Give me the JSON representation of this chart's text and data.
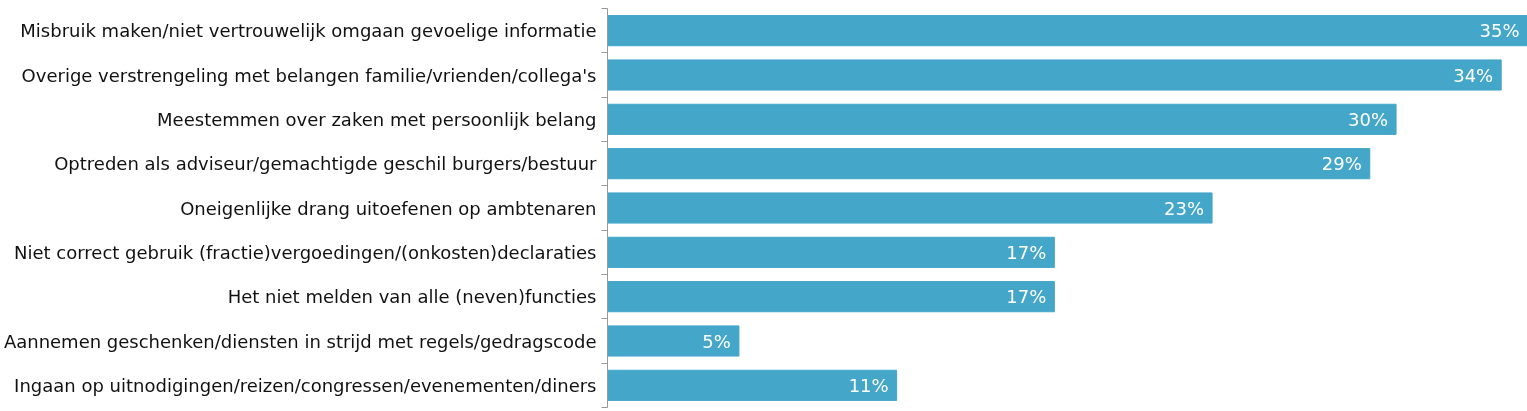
{
  "chart_data": {
    "type": "bar",
    "orientation": "horizontal",
    "categories": [
      "Misbruik maken/niet vertrouwelijk omgaan gevoelige informatie",
      "Overige verstrengeling met belangen familie/vrienden/collega's",
      "Meestemmen over zaken met persoonlijk belang",
      "Optreden als adviseur/gemachtigde geschil burgers/bestuur",
      "Oneigenlijke drang uitoefenen op ambtenaren",
      "Niet correct gebruik (fractie)vergoedingen/(onkosten)declaraties",
      "Het niet melden van alle (neven)functies",
      "Aannemen geschenken/diensten in strijd met regels/gedragscode",
      "Ingaan op uitnodigingen/reizen/congressen/evenementen/diners"
    ],
    "values": [
      35,
      34,
      30,
      29,
      23,
      17,
      17,
      5,
      11
    ],
    "value_labels": [
      "35%",
      "34%",
      "30%",
      "29%",
      "23%",
      "17%",
      "17%",
      "5%",
      "11%"
    ],
    "color": "#44a6c8",
    "grid": false
  }
}
